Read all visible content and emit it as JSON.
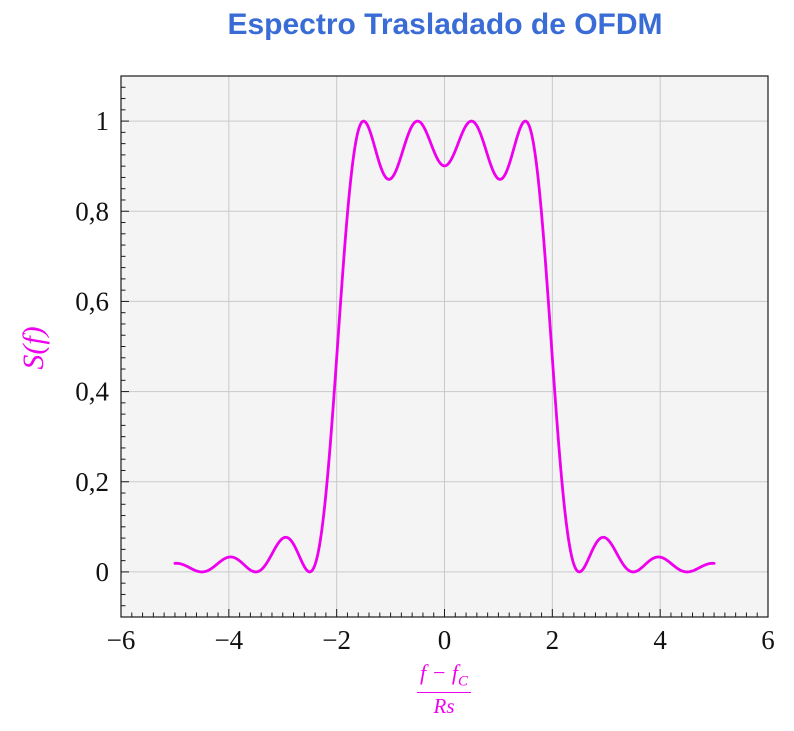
{
  "title": {
    "text": "Espectro Trasladado de OFDM",
    "color": "#3a6cd6"
  },
  "chart_data": {
    "type": "line",
    "title": "Espectro Trasladado de OFDM",
    "ylabel": "S(f)",
    "xlabel": {
      "num_main": "f − f",
      "num_sub": "C",
      "den": "Rs"
    },
    "series_color": "#ee00ee",
    "label_color": "#ee00ee",
    "plot_bg": "#f4f4f4",
    "grid_color": "#c9c9c9",
    "axis_color": "#1a1a1a",
    "tick_label_color": "#111111",
    "grid": true,
    "legend": "none",
    "xlim": [
      -6,
      6
    ],
    "ylim": [
      -0.1,
      1.1
    ],
    "x_ticks": {
      "values": [
        -6,
        -4,
        -2,
        0,
        2,
        4,
        6
      ],
      "labels": [
        "−6",
        "−4",
        "−2",
        "0",
        "2",
        "4",
        "6"
      ]
    },
    "y_ticks": {
      "values": [
        0,
        0.2,
        0.4,
        0.6,
        0.8,
        1
      ],
      "labels": [
        "0",
        "0,2",
        "0,4",
        "0,6",
        "0,8",
        "1"
      ]
    },
    "minor_tick_step_x": 0.2,
    "minor_tick_step_y": 0.025,
    "curve": {
      "model": "sum_of_sinc_squared",
      "subcarriers": [
        -1.5,
        -0.5,
        0.5,
        1.5
      ],
      "x_min": -5,
      "x_max": 5,
      "samples_x": [
        -5,
        -4.75,
        -4.5,
        -4.25,
        -4,
        -3.75,
        -3.5,
        -3.25,
        -3,
        -2.75,
        -2.5,
        -2.25,
        -2,
        -1.75,
        -1.5,
        -1.25,
        -1,
        -0.75,
        -0.5,
        -0.25,
        0,
        0.25,
        0.5,
        0.75,
        1,
        1.25,
        1.5,
        1.75,
        2,
        2.25,
        2.5,
        2.75,
        3,
        3.25,
        3.5,
        3.75,
        4,
        4.25,
        4.5,
        4.75,
        5
      ],
      "samples_y": [
        0.019,
        0.0107,
        0,
        0.0141,
        0.0328,
        0.0194,
        0,
        0.0291,
        0.0745,
        0.05,
        0,
        0.1169,
        0.4748,
        0.8578,
        1,
        0.9239,
        0.8718,
        0.9431,
        1,
        0.9496,
        0.9006,
        0.9496,
        1,
        0.9431,
        0.8718,
        0.9239,
        1,
        0.8578,
        0.4748,
        0.1169,
        0,
        0.05,
        0.0745,
        0.0291,
        0,
        0.0194,
        0.0328,
        0.0141,
        0,
        0.0107,
        0.019
      ]
    }
  }
}
